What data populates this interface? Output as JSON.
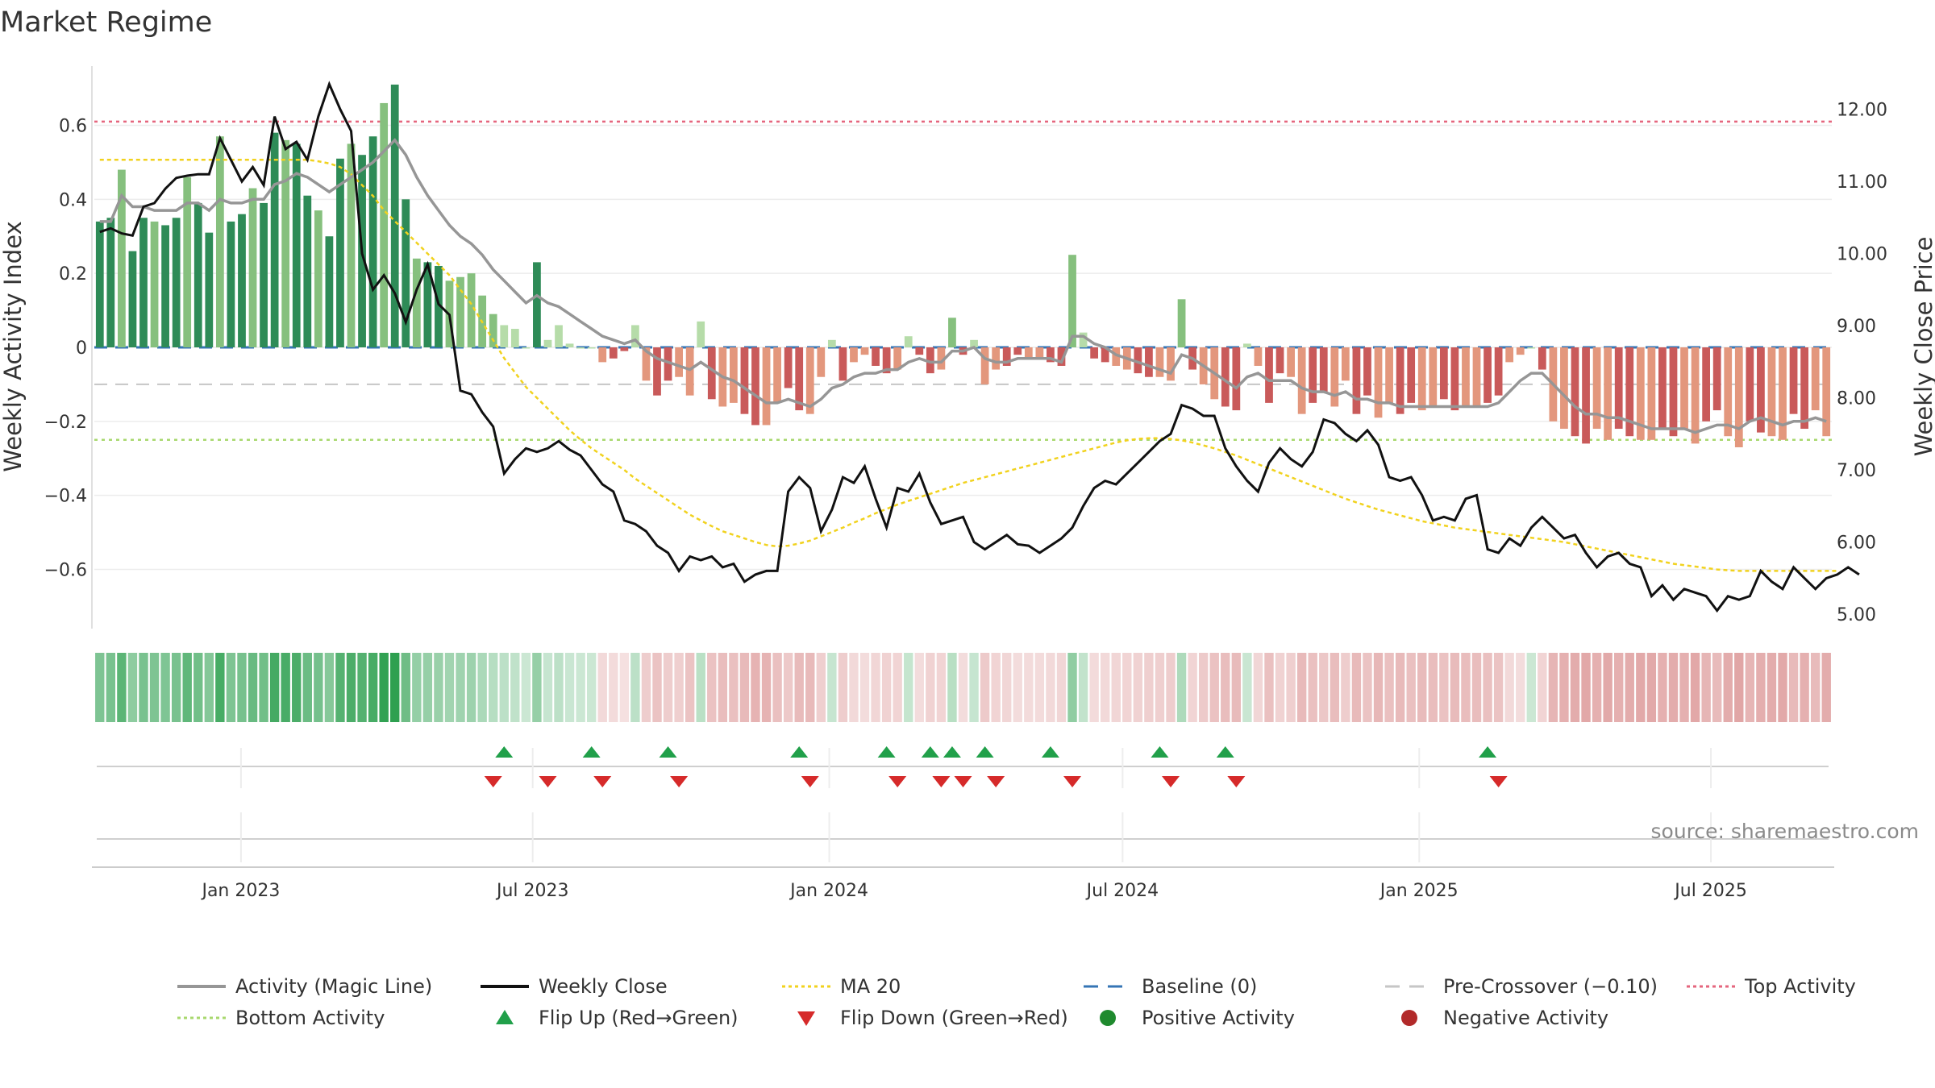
{
  "chart_data": {
    "type": "bar",
    "title": "Market Regime",
    "source": "source: sharemaestro.com",
    "y_left": {
      "label": "Weekly Activity Index",
      "ylim": [
        -0.76,
        0.76
      ],
      "ticks": [
        -0.6,
        -0.4,
        -0.2,
        0,
        0.2,
        0.4,
        0.6
      ],
      "tick_labels": [
        "−0.6",
        "−0.4",
        "−0.2",
        "0",
        "0.2",
        "0.4",
        "0.6"
      ]
    },
    "y_right": {
      "label": "Weekly Close Price",
      "ylim": [
        4.8,
        12.6
      ],
      "ticks": [
        5,
        6,
        7,
        8,
        9,
        10,
        11,
        12
      ],
      "tick_labels": [
        "5.00",
        "6.00",
        "7.00",
        "8.00",
        "9.00",
        "10.00",
        "11.00",
        "12.00"
      ]
    },
    "x_axis": {
      "start": "2022-10-02",
      "end": "2025-09-14",
      "tick_labels": [
        {
          "date": "2023-01-01",
          "label": "Jan 2023"
        },
        {
          "date": "2023-07-01",
          "label": "Jul 2023"
        },
        {
          "date": "2024-01-01",
          "label": "Jan 2024"
        },
        {
          "date": "2024-07-01",
          "label": "Jul 2024"
        },
        {
          "date": "2025-01-01",
          "label": "Jan 2025"
        },
        {
          "date": "2025-07-01",
          "label": "Jul 2025"
        }
      ]
    },
    "reference_lines": {
      "top_activity": 0.61,
      "baseline": 0,
      "pre_crossover": -0.1,
      "bottom_activity": -0.25
    },
    "activity_index": [
      0.34,
      0.35,
      0.48,
      0.26,
      0.35,
      0.34,
      0.33,
      0.35,
      0.46,
      0.39,
      0.31,
      0.57,
      0.34,
      0.36,
      0.43,
      0.39,
      0.58,
      0.56,
      0.55,
      0.41,
      0.37,
      0.3,
      0.51,
      0.55,
      0.52,
      0.57,
      0.66,
      0.71,
      0.4,
      0.24,
      0.23,
      0.22,
      0.18,
      0.19,
      0.2,
      0.14,
      0.09,
      0.06,
      0.05,
      0.0,
      0.23,
      0.02,
      0.06,
      0.01,
      0.0,
      0.0,
      -0.04,
      -0.03,
      -0.01,
      0.06,
      -0.09,
      -0.13,
      -0.09,
      -0.08,
      -0.13,
      0.07,
      -0.14,
      -0.16,
      -0.15,
      -0.18,
      -0.21,
      -0.21,
      -0.15,
      -0.11,
      -0.17,
      -0.18,
      -0.08,
      0.02,
      -0.09,
      -0.04,
      -0.02,
      -0.05,
      -0.07,
      -0.06,
      0.03,
      -0.02,
      -0.07,
      -0.06,
      0.08,
      -0.02,
      0.02,
      -0.1,
      -0.06,
      -0.05,
      -0.02,
      -0.03,
      -0.03,
      -0.04,
      -0.05,
      0.25,
      0.04,
      -0.03,
      -0.04,
      -0.05,
      -0.06,
      -0.07,
      -0.08,
      -0.08,
      -0.09,
      0.13,
      -0.06,
      -0.1,
      -0.14,
      -0.16,
      -0.17,
      0.01,
      -0.05,
      -0.15,
      -0.07,
      -0.08,
      -0.18,
      -0.15,
      -0.12,
      -0.16,
      -0.09,
      -0.18,
      -0.13,
      -0.19,
      -0.15,
      -0.18,
      -0.15,
      -0.17,
      -0.16,
      -0.14,
      -0.17,
      -0.16,
      -0.16,
      -0.15,
      -0.13,
      -0.04,
      -0.02,
      0.0,
      -0.06,
      -0.2,
      -0.22,
      -0.24,
      -0.26,
      -0.22,
      -0.25,
      -0.22,
      -0.24,
      -0.25,
      -0.25,
      -0.22,
      -0.24,
      -0.22,
      -0.26,
      -0.2,
      -0.17,
      -0.24,
      -0.27,
      -0.2,
      -0.23,
      -0.24,
      -0.25,
      -0.18,
      -0.22,
      -0.17,
      -0.24
    ],
    "magic_line": [
      0.34,
      0.34,
      0.41,
      0.38,
      0.38,
      0.37,
      0.37,
      0.37,
      0.39,
      0.39,
      0.37,
      0.4,
      0.39,
      0.39,
      0.4,
      0.4,
      0.44,
      0.45,
      0.47,
      0.46,
      0.44,
      0.42,
      0.44,
      0.46,
      0.48,
      0.5,
      0.53,
      0.56,
      0.52,
      0.46,
      0.41,
      0.37,
      0.33,
      0.3,
      0.28,
      0.25,
      0.21,
      0.18,
      0.15,
      0.12,
      0.14,
      0.12,
      0.11,
      0.09,
      0.07,
      0.05,
      0.03,
      0.02,
      0.01,
      0.02,
      -0.01,
      -0.03,
      -0.04,
      -0.05,
      -0.06,
      -0.04,
      -0.06,
      -0.08,
      -0.09,
      -0.11,
      -0.13,
      -0.15,
      -0.15,
      -0.14,
      -0.15,
      -0.16,
      -0.14,
      -0.11,
      -0.1,
      -0.08,
      -0.07,
      -0.07,
      -0.06,
      -0.06,
      -0.04,
      -0.03,
      -0.04,
      -0.04,
      -0.01,
      -0.01,
      0.0,
      -0.03,
      -0.04,
      -0.04,
      -0.03,
      -0.03,
      -0.03,
      -0.03,
      -0.04,
      0.03,
      0.03,
      0.01,
      0.0,
      -0.02,
      -0.03,
      -0.04,
      -0.05,
      -0.06,
      -0.07,
      -0.02,
      -0.03,
      -0.05,
      -0.07,
      -0.09,
      -0.11,
      -0.08,
      -0.07,
      -0.09,
      -0.09,
      -0.09,
      -0.11,
      -0.12,
      -0.12,
      -0.13,
      -0.12,
      -0.14,
      -0.14,
      -0.15,
      -0.15,
      -0.16,
      -0.16,
      -0.16,
      -0.16,
      -0.16,
      -0.16,
      -0.16,
      -0.16,
      -0.16,
      -0.15,
      -0.12,
      -0.09,
      -0.07,
      -0.07,
      -0.1,
      -0.13,
      -0.16,
      -0.18,
      -0.18,
      -0.19,
      -0.19,
      -0.2,
      -0.21,
      -0.22,
      -0.22,
      -0.22,
      -0.22,
      -0.23,
      -0.22,
      -0.21,
      -0.21,
      -0.22,
      -0.2,
      -0.19,
      -0.2,
      -0.21,
      -0.2,
      -0.2,
      -0.19,
      -0.2
    ],
    "weekly_close": [
      10.3,
      10.35,
      10.28,
      10.25,
      10.65,
      10.7,
      10.9,
      11.05,
      11.08,
      11.1,
      11.1,
      11.6,
      11.3,
      11.0,
      11.2,
      10.95,
      11.9,
      11.45,
      11.55,
      11.3,
      11.9,
      12.35,
      12.0,
      11.7,
      10.0,
      9.5,
      9.7,
      9.45,
      9.05,
      9.5,
      9.85,
      9.3,
      9.15,
      8.1,
      8.05,
      7.8,
      7.6,
      6.95,
      7.15,
      7.3,
      7.25,
      7.3,
      7.4,
      7.28,
      7.2,
      7.0,
      6.8,
      6.7,
      6.3,
      6.25,
      6.15,
      5.95,
      5.85,
      5.6,
      5.8,
      5.75,
      5.8,
      5.65,
      5.7,
      5.45,
      5.55,
      5.6,
      5.6,
      6.7,
      6.9,
      6.75,
      6.15,
      6.45,
      6.9,
      6.82,
      7.05,
      6.6,
      6.2,
      6.75,
      6.7,
      6.95,
      6.55,
      6.25,
      6.3,
      6.35,
      6.0,
      5.9,
      6.0,
      6.1,
      5.97,
      5.95,
      5.85,
      5.95,
      6.05,
      6.2,
      6.5,
      6.75,
      6.85,
      6.8,
      6.95,
      7.1,
      7.25,
      7.4,
      7.5,
      7.9,
      7.85,
      7.75,
      7.75,
      7.3,
      7.05,
      6.85,
      6.7,
      7.1,
      7.3,
      7.15,
      7.05,
      7.25,
      7.7,
      7.65,
      7.5,
      7.4,
      7.55,
      7.35,
      6.9,
      6.85,
      6.9,
      6.65,
      6.3,
      6.35,
      6.3,
      6.6,
      6.65,
      5.9,
      5.85,
      6.05,
      5.95,
      6.2,
      6.35,
      6.2,
      6.05,
      6.1,
      5.85,
      5.65,
      5.8,
      5.85,
      5.7,
      5.65,
      5.25,
      5.4,
      5.2,
      5.35,
      5.3,
      5.25,
      5.05,
      5.25,
      5.2,
      5.25,
      5.6,
      5.45,
      5.35,
      5.65,
      5.5,
      5.35,
      5.5,
      5.55,
      5.65,
      5.55
    ],
    "ma20": [
      11.3,
      11.3,
      11.3,
      11.3,
      11.3,
      11.3,
      11.3,
      11.3,
      11.3,
      11.3,
      11.3,
      11.3,
      11.3,
      11.3,
      11.3,
      11.3,
      11.3,
      11.3,
      11.3,
      11.3,
      11.28,
      11.25,
      11.2,
      11.1,
      10.95,
      10.8,
      10.6,
      10.45,
      10.3,
      10.15,
      10.0,
      9.85,
      9.7,
      9.5,
      9.3,
      9.05,
      8.8,
      8.55,
      8.35,
      8.15,
      8.0,
      7.85,
      7.7,
      7.55,
      7.42,
      7.3,
      7.2,
      7.1,
      7.0,
      6.88,
      6.78,
      6.68,
      6.58,
      6.48,
      6.38,
      6.3,
      6.22,
      6.15,
      6.1,
      6.05,
      6.0,
      5.96,
      5.94,
      5.95,
      5.98,
      6.02,
      6.08,
      6.14,
      6.2,
      6.27,
      6.33,
      6.4,
      6.46,
      6.52,
      6.57,
      6.62,
      6.67,
      6.72,
      6.77,
      6.82,
      6.86,
      6.9,
      6.94,
      6.98,
      7.02,
      7.06,
      7.1,
      7.14,
      7.18,
      7.22,
      7.26,
      7.3,
      7.34,
      7.38,
      7.41,
      7.43,
      7.44,
      7.44,
      7.43,
      7.41,
      7.38,
      7.34,
      7.3,
      7.25,
      7.2,
      7.14,
      7.08,
      7.02,
      6.96,
      6.9,
      6.84,
      6.78,
      6.72,
      6.66,
      6.6,
      6.55,
      6.5,
      6.45,
      6.41,
      6.37,
      6.33,
      6.29,
      6.26,
      6.23,
      6.2,
      6.18,
      6.16,
      6.14,
      6.12,
      6.1,
      6.08,
      6.06,
      6.04,
      6.02,
      6.0,
      5.97,
      5.94,
      5.91,
      5.88,
      5.85,
      5.82,
      5.79,
      5.76,
      5.73,
      5.7,
      5.68,
      5.66,
      5.64,
      5.62,
      5.61,
      5.6,
      5.6,
      5.6,
      5.6,
      5.6,
      5.6,
      5.6,
      5.6,
      5.6,
      5.6
    ],
    "flip_up_weeks": [
      37,
      45,
      52,
      64,
      72,
      76,
      78,
      81,
      87,
      97,
      103,
      127
    ],
    "flip_down_weeks": [
      36,
      41,
      46,
      53,
      65,
      73,
      77,
      79,
      82,
      89,
      98,
      104,
      128
    ],
    "legend": [
      {
        "label": "Activity (Magic Line)",
        "symbol": "line",
        "color": "#969696"
      },
      {
        "label": "Weekly Close",
        "symbol": "line",
        "color": "#111111"
      },
      {
        "label": "MA 20",
        "symbol": "dotted",
        "color": "#f1d21e"
      },
      {
        "label": "Baseline (0)",
        "symbol": "dashed",
        "color": "#3575b5"
      },
      {
        "label": "Pre-Crossover (−0.10)",
        "symbol": "dashed",
        "color": "#c6c6c6"
      },
      {
        "label": "Top Activity",
        "symbol": "dotted",
        "color": "#e5667e"
      },
      {
        "label": "Bottom Activity",
        "symbol": "dotted",
        "color": "#a8d86e"
      },
      {
        "label": "Flip Up (Red→Green)",
        "symbol": "triangle-up",
        "color": "#21a04a"
      },
      {
        "label": "Flip Down (Green→Red)",
        "symbol": "triangle-down",
        "color": "#d62a2a"
      },
      {
        "label": "Positive Activity",
        "symbol": "circle",
        "color": "#1f8a2e"
      },
      {
        "label": "Negative Activity",
        "symbol": "circle",
        "color": "#b22a2a"
      }
    ]
  }
}
